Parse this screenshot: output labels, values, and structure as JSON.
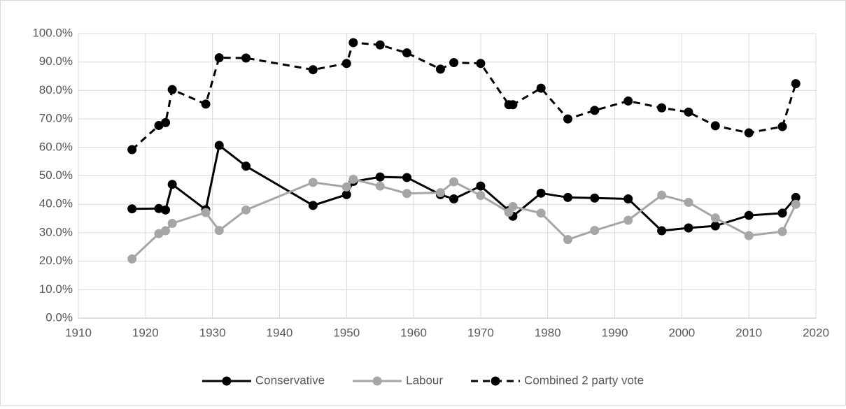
{
  "chart_data": {
    "type": "line",
    "x": [
      1918,
      1922,
      1923,
      1924,
      1929,
      1931,
      1935,
      1945,
      1950,
      1951,
      1955,
      1959,
      1964,
      1966,
      1970,
      1974.2,
      1974.8,
      1979,
      1983,
      1987,
      1992,
      1997,
      2001,
      2005,
      2010,
      2015,
      2017
    ],
    "series": [
      {
        "name": "Conservative",
        "color": "#000000",
        "line_style": "solid",
        "values": [
          38.4,
          38.5,
          38.0,
          47.0,
          38.1,
          60.7,
          53.4,
          39.6,
          43.4,
          48.0,
          49.6,
          49.4,
          43.4,
          41.9,
          46.4,
          37.8,
          35.8,
          43.9,
          42.4,
          42.2,
          41.9,
          30.7,
          31.7,
          32.4,
          36.1,
          36.9,
          42.4
        ]
      },
      {
        "name": "Labour",
        "color": "#a6a6a6",
        "line_style": "solid",
        "values": [
          20.8,
          29.7,
          30.7,
          33.3,
          37.1,
          30.8,
          38.0,
          47.7,
          46.1,
          48.8,
          46.4,
          43.8,
          44.1,
          47.9,
          43.1,
          37.2,
          39.2,
          36.9,
          27.6,
          30.8,
          34.4,
          43.2,
          40.7,
          35.2,
          29.0,
          30.4,
          40.0
        ]
      },
      {
        "name": "Combined 2 party vote",
        "color": "#000000",
        "line_style": "dashed",
        "values": [
          59.2,
          67.7,
          68.7,
          80.3,
          75.2,
          91.5,
          91.4,
          87.3,
          89.5,
          96.8,
          96.0,
          93.2,
          87.5,
          89.8,
          89.5,
          75.0,
          75.0,
          80.8,
          70.0,
          73.0,
          76.3,
          73.9,
          72.4,
          67.6,
          65.1,
          67.3,
          82.4
        ]
      }
    ],
    "xlim": [
      1910,
      2020
    ],
    "xticks": [
      1910,
      1920,
      1930,
      1940,
      1950,
      1960,
      1970,
      1980,
      1990,
      2000,
      2010,
      2020
    ],
    "ylim": [
      0,
      100
    ],
    "yticks": [
      {
        "value": 0,
        "label": "0.0%"
      },
      {
        "value": 10,
        "label": "10.0%"
      },
      {
        "value": 20,
        "label": "20.0%"
      },
      {
        "value": 30,
        "label": "30.0%"
      },
      {
        "value": 40,
        "label": "40.0%"
      },
      {
        "value": 50,
        "label": "50.0%"
      },
      {
        "value": 60,
        "label": "60.0%"
      },
      {
        "value": 70,
        "label": "70.0%"
      },
      {
        "value": 80,
        "label": "80.0%"
      },
      {
        "value": 90,
        "label": "90.0%"
      },
      {
        "value": 100,
        "label": "100.0%"
      }
    ],
    "grid": true,
    "legend": "bottom"
  }
}
